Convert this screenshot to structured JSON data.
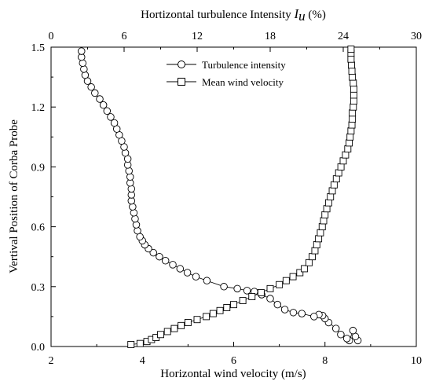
{
  "chart_data": {
    "type": "scatter",
    "top_axis": {
      "label_prefix": "Hortizontal turbulence Intensity ",
      "label_symbol": "I",
      "label_subscript": "u",
      "label_suffix": " (%)",
      "range": [
        0,
        30
      ],
      "ticks": [
        0,
        6,
        12,
        18,
        24,
        30
      ]
    },
    "bottom_axis": {
      "label": "Horizontal wind velocity (m/s)",
      "range": [
        2,
        10
      ],
      "ticks": [
        2,
        4,
        6,
        8,
        10
      ]
    },
    "left_axis": {
      "label": "Vertival Position of Corba Probe",
      "range": [
        0.0,
        1.5
      ],
      "ticks": [
        0.0,
        0.3,
        0.6,
        0.9,
        1.2,
        1.5
      ],
      "tick_labels": [
        "0.0",
        "0.3",
        "0.6",
        "0.9",
        "1.2",
        "1.5"
      ]
    },
    "legend": {
      "placement": "top-center",
      "entries": [
        {
          "name": "Turbulence intensity",
          "marker": "circle"
        },
        {
          "name": "Mean wind velocity",
          "marker": "square"
        }
      ]
    },
    "series": [
      {
        "name": "Turbulence intensity",
        "marker": "circle",
        "axis": "top",
        "points": [
          [
            25.2,
            0.03
          ],
          [
            25.0,
            0.05
          ],
          [
            24.8,
            0.08
          ],
          [
            24.5,
            0.03
          ],
          [
            24.3,
            0.04
          ],
          [
            23.8,
            0.06
          ],
          [
            23.4,
            0.09
          ],
          [
            22.8,
            0.12
          ],
          [
            22.5,
            0.14
          ],
          [
            22.3,
            0.155
          ],
          [
            22.0,
            0.16
          ],
          [
            21.6,
            0.15
          ],
          [
            20.6,
            0.165
          ],
          [
            19.9,
            0.17
          ],
          [
            19.2,
            0.185
          ],
          [
            18.6,
            0.21
          ],
          [
            18.0,
            0.24
          ],
          [
            17.3,
            0.26
          ],
          [
            16.7,
            0.275
          ],
          [
            16.1,
            0.28
          ],
          [
            15.3,
            0.29
          ],
          [
            14.2,
            0.3
          ],
          [
            12.8,
            0.33
          ],
          [
            11.9,
            0.35
          ],
          [
            11.2,
            0.37
          ],
          [
            10.6,
            0.39
          ],
          [
            10.0,
            0.41
          ],
          [
            9.4,
            0.43
          ],
          [
            8.9,
            0.45
          ],
          [
            8.4,
            0.47
          ],
          [
            8.0,
            0.49
          ],
          [
            7.7,
            0.51
          ],
          [
            7.5,
            0.53
          ],
          [
            7.3,
            0.55
          ],
          [
            7.1,
            0.58
          ],
          [
            7.0,
            0.61
          ],
          [
            6.9,
            0.64
          ],
          [
            6.8,
            0.67
          ],
          [
            6.7,
            0.7
          ],
          [
            6.6,
            0.73
          ],
          [
            6.6,
            0.76
          ],
          [
            6.6,
            0.79
          ],
          [
            6.5,
            0.82
          ],
          [
            6.5,
            0.85
          ],
          [
            6.4,
            0.88
          ],
          [
            6.3,
            0.91
          ],
          [
            6.3,
            0.94
          ],
          [
            6.1,
            0.97
          ],
          [
            6.0,
            1.0
          ],
          [
            5.8,
            1.03
          ],
          [
            5.6,
            1.06
          ],
          [
            5.4,
            1.09
          ],
          [
            5.2,
            1.12
          ],
          [
            4.9,
            1.15
          ],
          [
            4.6,
            1.18
          ],
          [
            4.3,
            1.21
          ],
          [
            4.0,
            1.24
          ],
          [
            3.6,
            1.27
          ],
          [
            3.3,
            1.3
          ],
          [
            3.0,
            1.33
          ],
          [
            2.8,
            1.36
          ],
          [
            2.7,
            1.39
          ],
          [
            2.6,
            1.42
          ],
          [
            2.5,
            1.45
          ],
          [
            2.5,
            1.48
          ]
        ]
      },
      {
        "name": "Mean wind velocity",
        "marker": "square",
        "axis": "bottom",
        "points": [
          [
            3.75,
            0.01
          ],
          [
            3.95,
            0.015
          ],
          [
            4.1,
            0.025
          ],
          [
            4.2,
            0.035
          ],
          [
            4.3,
            0.045
          ],
          [
            4.4,
            0.06
          ],
          [
            4.55,
            0.075
          ],
          [
            4.7,
            0.09
          ],
          [
            4.85,
            0.105
          ],
          [
            5.0,
            0.12
          ],
          [
            5.2,
            0.135
          ],
          [
            5.4,
            0.15
          ],
          [
            5.55,
            0.165
          ],
          [
            5.7,
            0.18
          ],
          [
            5.85,
            0.195
          ],
          [
            6.0,
            0.21
          ],
          [
            6.2,
            0.23
          ],
          [
            6.4,
            0.25
          ],
          [
            6.6,
            0.27
          ],
          [
            6.8,
            0.29
          ],
          [
            7.0,
            0.31
          ],
          [
            7.15,
            0.33
          ],
          [
            7.3,
            0.35
          ],
          [
            7.45,
            0.37
          ],
          [
            7.55,
            0.39
          ],
          [
            7.65,
            0.42
          ],
          [
            7.72,
            0.45
          ],
          [
            7.78,
            0.48
          ],
          [
            7.82,
            0.51
          ],
          [
            7.86,
            0.54
          ],
          [
            7.9,
            0.57
          ],
          [
            7.94,
            0.6
          ],
          [
            7.97,
            0.63
          ],
          [
            8.0,
            0.66
          ],
          [
            8.04,
            0.69
          ],
          [
            8.08,
            0.72
          ],
          [
            8.12,
            0.75
          ],
          [
            8.16,
            0.78
          ],
          [
            8.2,
            0.81
          ],
          [
            8.25,
            0.84
          ],
          [
            8.3,
            0.87
          ],
          [
            8.35,
            0.9
          ],
          [
            8.4,
            0.93
          ],
          [
            8.45,
            0.96
          ],
          [
            8.5,
            0.99
          ],
          [
            8.53,
            1.02
          ],
          [
            8.55,
            1.05
          ],
          [
            8.57,
            1.08
          ],
          [
            8.59,
            1.11
          ],
          [
            8.6,
            1.14
          ],
          [
            8.6,
            1.17
          ],
          [
            8.62,
            1.2
          ],
          [
            8.63,
            1.23
          ],
          [
            8.63,
            1.26
          ],
          [
            8.63,
            1.29
          ],
          [
            8.62,
            1.32
          ],
          [
            8.6,
            1.35
          ],
          [
            8.59,
            1.38
          ],
          [
            8.58,
            1.41
          ],
          [
            8.57,
            1.44
          ],
          [
            8.57,
            1.47
          ],
          [
            8.57,
            1.49
          ]
        ]
      }
    ],
    "grid": false
  }
}
